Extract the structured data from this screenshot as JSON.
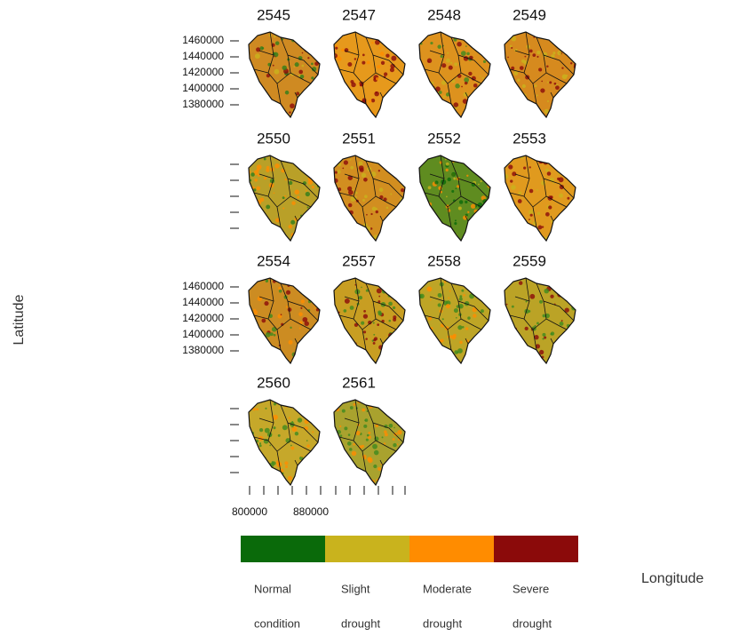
{
  "panels": [
    {
      "title": "2545"
    },
    {
      "title": "2547"
    },
    {
      "title": "2548"
    },
    {
      "title": "2549"
    },
    {
      "title": "2550"
    },
    {
      "title": "2551"
    },
    {
      "title": "2552"
    },
    {
      "title": "2553"
    },
    {
      "title": "2554"
    },
    {
      "title": "2557"
    },
    {
      "title": "2558"
    },
    {
      "title": "2559"
    },
    {
      "title": "2560"
    },
    {
      "title": "2561"
    }
  ],
  "y_axis": {
    "label": "Latitude",
    "ticks": [
      1460000,
      1440000,
      1420000,
      1400000,
      1380000
    ]
  },
  "x_axis": {
    "label": "Longitude",
    "ticks": [
      800000,
      880000
    ]
  },
  "legend": [
    {
      "lines": [
        "Normal",
        "condition"
      ],
      "color": "#0a6a0a"
    },
    {
      "lines": [
        "Slight",
        "drought"
      ],
      "color": "#c9b31d"
    },
    {
      "lines": [
        "Moderate",
        "drought"
      ],
      "color": "#ff8c00"
    },
    {
      "lines": [
        "Severe",
        "drought"
      ],
      "color": "#8b0a0a"
    }
  ]
}
